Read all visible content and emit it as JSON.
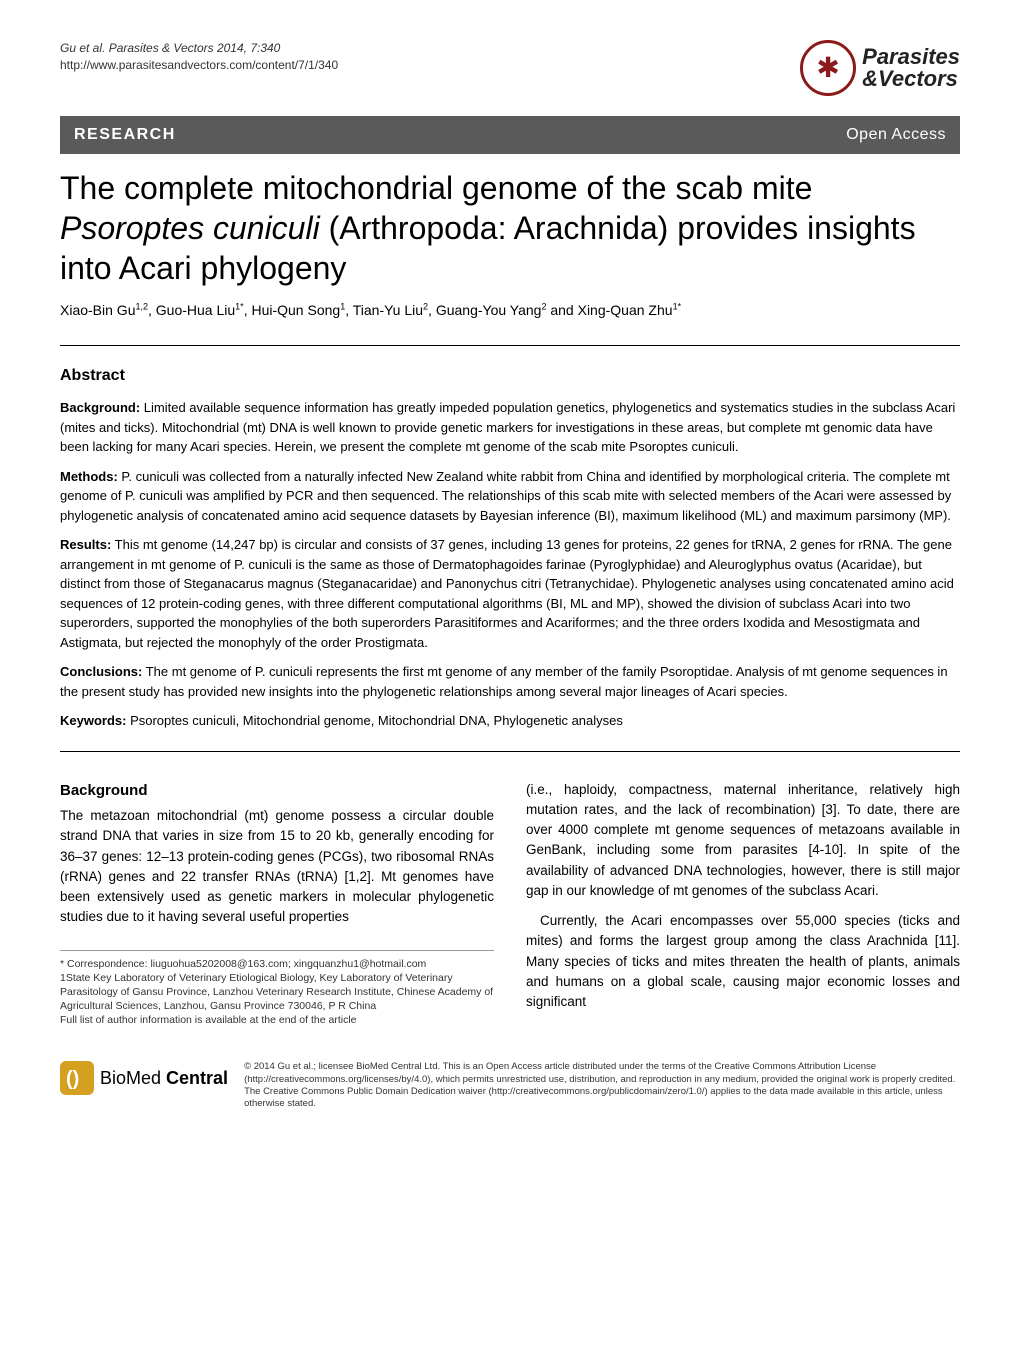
{
  "header": {
    "citation_line1": "Gu et al. Parasites & Vectors 2014, 7:340",
    "citation_line2": "http://www.parasitesandvectors.com/content/7/1/340",
    "journal_name_line1": "Parasites",
    "journal_name_line2": "&Vectors"
  },
  "bar": {
    "research_label": "RESEARCH",
    "open_access": "Open Access"
  },
  "title": {
    "part1": "The complete mitochondrial genome of the scab mite ",
    "species": "Psoroptes cuniculi",
    "part2": " (Arthropoda: Arachnida) provides insights into Acari phylogeny"
  },
  "authors_html": "Xiao-Bin Gu<sup>1,2</sup>, Guo-Hua Liu<sup>1*</sup>, Hui-Qun Song<sup>1</sup>, Tian-Yu Liu<sup>2</sup>, Guang-You Yang<sup>2</sup> and Xing-Quan Zhu<sup>1*</sup>",
  "abstract": {
    "heading": "Abstract",
    "background_label": "Background:",
    "background_text": " Limited available sequence information has greatly impeded population genetics, phylogenetics and systematics studies in the subclass Acari (mites and ticks). Mitochondrial (mt) DNA is well known to provide genetic markers for investigations in these areas, but complete mt genomic data have been lacking for many Acari species. Herein, we present the complete mt genome of the scab mite Psoroptes cuniculi.",
    "methods_label": "Methods:",
    "methods_text": " P. cuniculi was collected from a naturally infected New Zealand white rabbit from China and identified by morphological criteria. The complete mt genome of P. cuniculi was amplified by PCR and then sequenced. The relationships of this scab mite with selected members of the Acari were assessed by phylogenetic analysis of concatenated amino acid sequence datasets by Bayesian inference (BI), maximum likelihood (ML) and maximum parsimony (MP).",
    "results_label": "Results:",
    "results_text": " This mt genome (14,247 bp) is circular and consists of 37 genes, including 13 genes for proteins, 22 genes for tRNA, 2 genes for rRNA. The gene arrangement in mt genome of P. cuniculi is the same as those of Dermatophagoides farinae (Pyroglyphidae) and Aleuroglyphus ovatus (Acaridae), but distinct from those of Steganacarus magnus (Steganacaridae) and Panonychus citri (Tetranychidae). Phylogenetic analyses using concatenated amino acid sequences of 12 protein-coding genes, with three different computational algorithms (BI, ML and MP), showed the division of subclass Acari into two superorders, supported the monophylies of the both superorders Parasitiformes and Acariformes; and the three orders Ixodida and Mesostigmata and Astigmata, but rejected the monophyly of the order Prostigmata.",
    "conclusions_label": "Conclusions:",
    "conclusions_text": " The mt genome of P. cuniculi represents the first mt genome of any member of the family Psoroptidae. Analysis of mt genome sequences in the present study has provided new insights into the phylogenetic relationships among several major lineages of Acari species.",
    "keywords_label": "Keywords:",
    "keywords_text": " Psoroptes cuniculi, Mitochondrial genome, Mitochondrial DNA, Phylogenetic analyses"
  },
  "body": {
    "background_heading": "Background",
    "left_p1": "The metazoan mitochondrial (mt) genome possess a circular double strand DNA that varies in size from 15 to 20 kb, generally encoding for 36–37 genes: 12–13 protein-coding genes (PCGs), two ribosomal RNAs (rRNA) genes and 22 transfer RNAs (tRNA) [1,2]. Mt genomes have been extensively used as genetic markers in molecular phylogenetic studies due to it having several useful properties",
    "right_p1": "(i.e., haploidy, compactness, maternal inheritance, relatively high mutation rates, and the lack of recombination) [3]. To date, there are over 4000 complete mt genome sequences of metazoans available in GenBank, including some from parasites [4-10]. In spite of the availability of advanced DNA technologies, however, there is still major gap in our knowledge of mt genomes of the subclass Acari.",
    "right_p2": "Currently, the Acari encompasses over 55,000 species (ticks and mites) and forms the largest group among the class Arachnida [11]. Many species of ticks and mites threaten the health of plants, animals and humans on a global scale, causing major economic losses and significant"
  },
  "correspondence": {
    "line1": "* Correspondence: liuguohua5202008@163.com; xingquanzhu1@hotmail.com",
    "line2": "1State Key Laboratory of Veterinary Etiological Biology, Key Laboratory of Veterinary Parasitology of Gansu Province, Lanzhou Veterinary Research Institute, Chinese Academy of Agricultural Sciences, Lanzhou, Gansu Province 730046, P R China",
    "line3": "Full list of author information is available at the end of the article"
  },
  "footer": {
    "bmc_text": "BioMed Central",
    "license": "© 2014 Gu et al.; licensee BioMed Central Ltd. This is an Open Access article distributed under the terms of the Creative Commons Attribution License (http://creativecommons.org/licenses/by/4.0), which permits unrestricted use, distribution, and reproduction in any medium, provided the original work is properly credited. The Creative Commons Public Domain Dedication waiver (http://creativecommons.org/publicdomain/zero/1.0/) applies to the data made available in this article, unless otherwise stated."
  }
}
